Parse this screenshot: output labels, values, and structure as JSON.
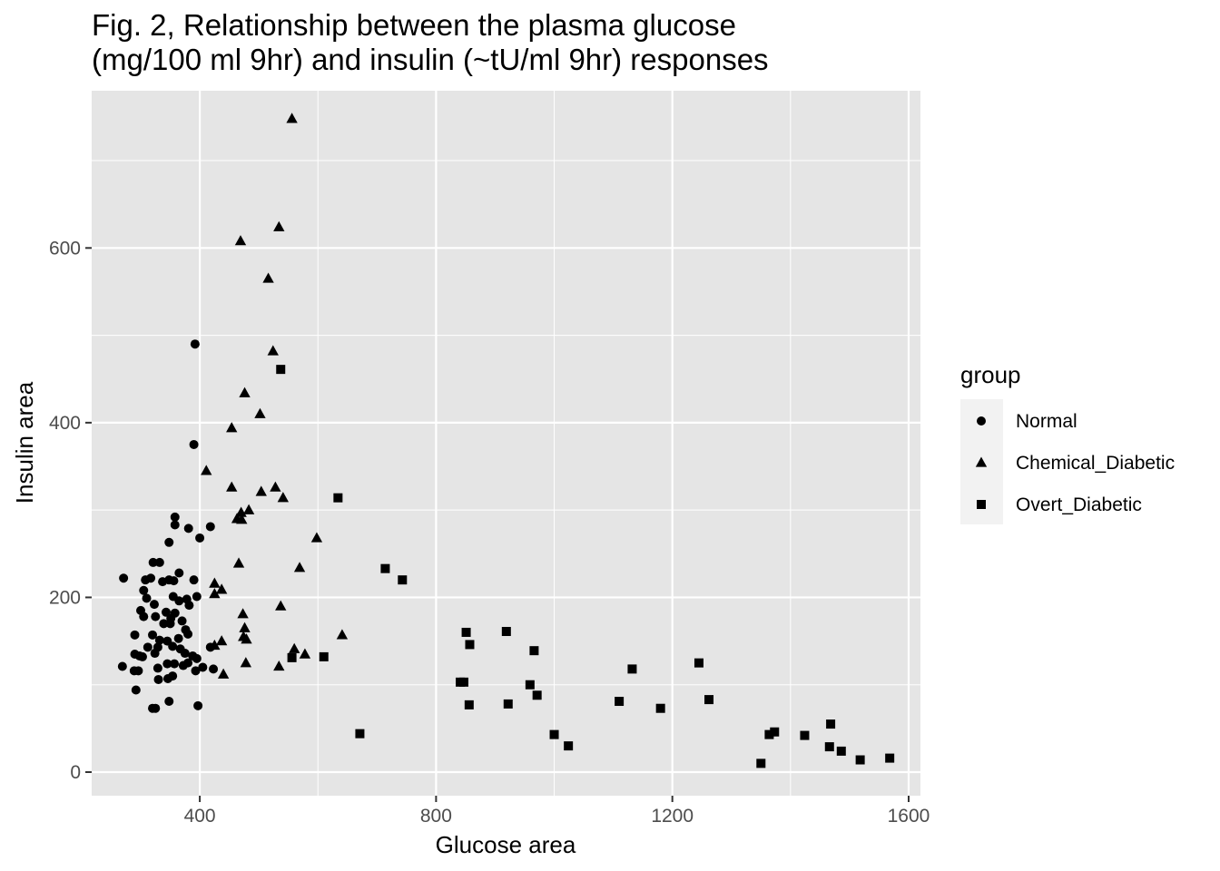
{
  "chart_data": {
    "type": "scatter",
    "title": "Fig. 2, Relationship between the plasma glucose\n (mg/100 ml 9hr) and insulin (~tU/ml 9hr) responses",
    "xlabel": "Glucose area",
    "ylabel": "Insulin area",
    "xlim": [
      217,
      1620
    ],
    "ylim": [
      -27,
      780
    ],
    "x_ticks": [
      400,
      800,
      1200,
      1600
    ],
    "y_ticks": [
      0,
      200,
      400,
      600
    ],
    "x_ticks_minor": [
      200,
      600,
      1000,
      1400
    ],
    "y_ticks_minor": [
      100,
      300,
      500,
      700
    ],
    "grid": true,
    "panel_color": "#e5e5e5",
    "grid_color": "#ffffff",
    "legend": {
      "title": "group",
      "position": "right",
      "entries": [
        "Normal",
        "Chemical_Diabetic",
        "Overt_Diabetic"
      ]
    },
    "series": [
      {
        "name": "Normal",
        "shape": "circle",
        "color": "#000000",
        "points": [
          [
            392,
            490
          ],
          [
            390,
            375
          ],
          [
            358,
            292
          ],
          [
            418,
            281
          ],
          [
            381,
            279
          ],
          [
            358,
            283
          ],
          [
            400,
            268
          ],
          [
            348,
            263
          ],
          [
            271,
            222
          ],
          [
            308,
            220
          ],
          [
            321,
            240
          ],
          [
            332,
            240
          ],
          [
            365,
            228
          ],
          [
            390,
            220
          ],
          [
            356,
            219
          ],
          [
            378,
            198
          ],
          [
            395,
            201
          ],
          [
            305,
            208
          ],
          [
            317,
            222
          ],
          [
            337,
            218
          ],
          [
            348,
            220
          ],
          [
            323,
            192
          ],
          [
            300,
            185
          ],
          [
            310,
            199
          ],
          [
            355,
            201
          ],
          [
            365,
            196
          ],
          [
            382,
            191
          ],
          [
            343,
            183
          ],
          [
            358,
            182
          ],
          [
            370,
            173
          ],
          [
            376,
            163
          ],
          [
            380,
            158
          ],
          [
            351,
            176
          ],
          [
            325,
            178
          ],
          [
            305,
            178
          ],
          [
            339,
            170
          ],
          [
            350,
            170
          ],
          [
            364,
            153
          ],
          [
            367,
            141
          ],
          [
            290,
            157
          ],
          [
            320,
            157
          ],
          [
            332,
            151
          ],
          [
            345,
            150
          ],
          [
            354,
            144
          ],
          [
            312,
            143
          ],
          [
            329,
            143
          ],
          [
            375,
            136
          ],
          [
            388,
            133
          ],
          [
            395,
            130
          ],
          [
            418,
            143
          ],
          [
            290,
            135
          ],
          [
            298,
            133
          ],
          [
            303,
            132
          ],
          [
            324,
            136
          ],
          [
            345,
            124
          ],
          [
            357,
            124
          ],
          [
            372,
            122
          ],
          [
            269,
            121
          ],
          [
            289,
            116
          ],
          [
            296,
            116
          ],
          [
            329,
            119
          ],
          [
            380,
            125
          ],
          [
            393,
            116
          ],
          [
            405,
            120
          ],
          [
            423,
            118
          ],
          [
            354,
            110
          ],
          [
            330,
            106
          ],
          [
            346,
            107
          ],
          [
            292,
            94
          ],
          [
            348,
            81
          ],
          [
            397,
            76
          ],
          [
            320,
            73
          ],
          [
            325,
            73
          ]
        ]
      },
      {
        "name": "Chemical_Diabetic",
        "shape": "triangle",
        "color": "#000000",
        "points": [
          [
            556,
            748
          ],
          [
            534,
            624
          ],
          [
            469,
            608
          ],
          [
            516,
            565
          ],
          [
            524,
            482
          ],
          [
            476,
            434
          ],
          [
            502,
            410
          ],
          [
            454,
            394
          ],
          [
            411,
            345
          ],
          [
            454,
            326
          ],
          [
            528,
            326
          ],
          [
            504,
            321
          ],
          [
            541,
            314
          ],
          [
            483,
            300
          ],
          [
            470,
            297
          ],
          [
            463,
            290
          ],
          [
            471,
            289
          ],
          [
            598,
            268
          ],
          [
            569,
            234
          ],
          [
            466,
            239
          ],
          [
            425,
            216
          ],
          [
            437,
            209
          ],
          [
            425,
            204
          ],
          [
            537,
            190
          ],
          [
            473,
            181
          ],
          [
            476,
            165
          ],
          [
            474,
            155
          ],
          [
            479,
            152
          ],
          [
            641,
            157
          ],
          [
            437,
            150
          ],
          [
            425,
            145
          ],
          [
            560,
            141
          ],
          [
            578,
            135
          ],
          [
            478,
            125
          ],
          [
            534,
            121
          ],
          [
            440,
            112
          ]
        ]
      },
      {
        "name": "Overt_Diabetic",
        "shape": "square",
        "color": "#000000",
        "points": [
          [
            537,
            461
          ],
          [
            634,
            314
          ],
          [
            714,
            233
          ],
          [
            743,
            220
          ],
          [
            851,
            160
          ],
          [
            919,
            161
          ],
          [
            857,
            146
          ],
          [
            966,
            139
          ],
          [
            610,
            132
          ],
          [
            556,
            131
          ],
          [
            1132,
            118
          ],
          [
            1245,
            125
          ],
          [
            841,
            103
          ],
          [
            847,
            103
          ],
          [
            959,
            100
          ],
          [
            971,
            88
          ],
          [
            856,
            77
          ],
          [
            922,
            78
          ],
          [
            1110,
            81
          ],
          [
            1180,
            73
          ],
          [
            1262,
            83
          ],
          [
            671,
            44
          ],
          [
            1000,
            43
          ],
          [
            1024,
            30
          ],
          [
            1468,
            55
          ],
          [
            1373,
            46
          ],
          [
            1364,
            43
          ],
          [
            1424,
            42
          ],
          [
            1466,
            29
          ],
          [
            1486,
            24
          ],
          [
            1518,
            14
          ],
          [
            1568,
            16
          ],
          [
            1350,
            10
          ]
        ]
      }
    ]
  }
}
